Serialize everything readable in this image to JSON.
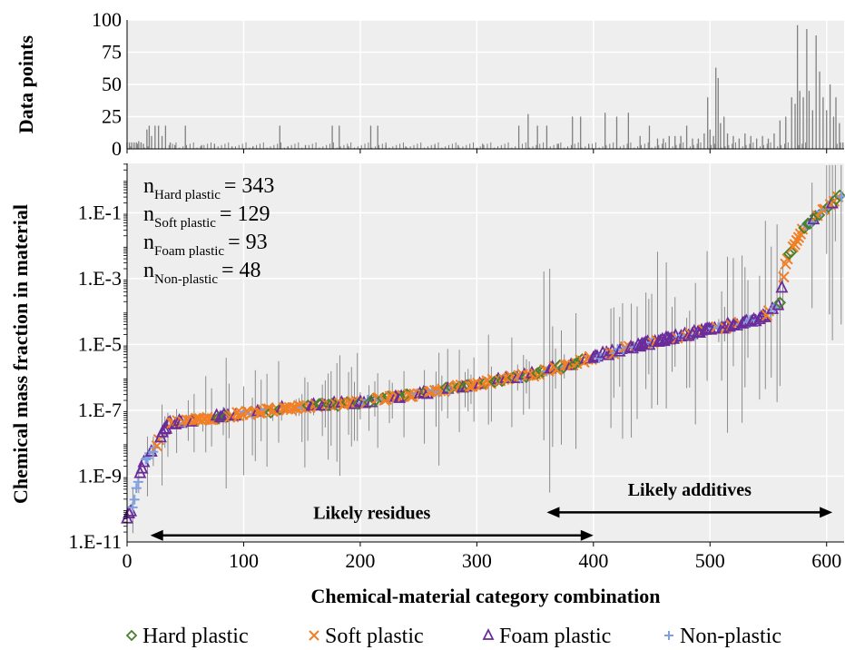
{
  "chart_data": [
    {
      "type": "bar",
      "panel": "top",
      "ylabel": "Data points",
      "ylim": [
        0,
        100
      ],
      "yticks": [
        "0",
        "25",
        "50",
        "75",
        "100"
      ],
      "bars": [
        {
          "x": 0,
          "y": 5
        },
        {
          "x": 2,
          "y": 5
        },
        {
          "x": 4,
          "y": 5
        },
        {
          "x": 6,
          "y": 5
        },
        {
          "x": 8,
          "y": 5
        },
        {
          "x": 10,
          "y": 6
        },
        {
          "x": 12,
          "y": 5
        },
        {
          "x": 14,
          "y": 4
        },
        {
          "x": 17,
          "y": 15
        },
        {
          "x": 19,
          "y": 18
        },
        {
          "x": 21,
          "y": 10
        },
        {
          "x": 24,
          "y": 18
        },
        {
          "x": 27,
          "y": 18
        },
        {
          "x": 30,
          "y": 10
        },
        {
          "x": 33,
          "y": 18
        },
        {
          "x": 37,
          "y": 5
        },
        {
          "x": 41,
          "y": 3
        },
        {
          "x": 50,
          "y": 18
        },
        {
          "x": 64,
          "y": 3
        },
        {
          "x": 75,
          "y": 4
        },
        {
          "x": 90,
          "y": 2
        },
        {
          "x": 108,
          "y": 2
        },
        {
          "x": 131,
          "y": 18
        },
        {
          "x": 138,
          "y": 2
        },
        {
          "x": 153,
          "y": 3
        },
        {
          "x": 176,
          "y": 18
        },
        {
          "x": 182,
          "y": 18
        },
        {
          "x": 190,
          "y": 2
        },
        {
          "x": 209,
          "y": 18
        },
        {
          "x": 215,
          "y": 18
        },
        {
          "x": 222,
          "y": 3
        },
        {
          "x": 239,
          "y": 2
        },
        {
          "x": 264,
          "y": 3
        },
        {
          "x": 284,
          "y": 3
        },
        {
          "x": 305,
          "y": 4
        },
        {
          "x": 336,
          "y": 18
        },
        {
          "x": 344,
          "y": 27
        },
        {
          "x": 352,
          "y": 18
        },
        {
          "x": 360,
          "y": 18
        },
        {
          "x": 370,
          "y": 4
        },
        {
          "x": 382,
          "y": 25
        },
        {
          "x": 389,
          "y": 25
        },
        {
          "x": 396,
          "y": 4
        },
        {
          "x": 410,
          "y": 28
        },
        {
          "x": 420,
          "y": 25
        },
        {
          "x": 430,
          "y": 28
        },
        {
          "x": 440,
          "y": 10
        },
        {
          "x": 448,
          "y": 18
        },
        {
          "x": 455,
          "y": 8
        },
        {
          "x": 460,
          "y": 8
        },
        {
          "x": 465,
          "y": 10
        },
        {
          "x": 470,
          "y": 10
        },
        {
          "x": 475,
          "y": 10
        },
        {
          "x": 480,
          "y": 18
        },
        {
          "x": 485,
          "y": 8
        },
        {
          "x": 490,
          "y": 8
        },
        {
          "x": 495,
          "y": 12
        },
        {
          "x": 498,
          "y": 40
        },
        {
          "x": 500,
          "y": 15
        },
        {
          "x": 503,
          "y": 10
        },
        {
          "x": 505,
          "y": 63
        },
        {
          "x": 507,
          "y": 55
        },
        {
          "x": 509,
          "y": 20
        },
        {
          "x": 512,
          "y": 25
        },
        {
          "x": 515,
          "y": 12
        },
        {
          "x": 520,
          "y": 10
        },
        {
          "x": 525,
          "y": 8
        },
        {
          "x": 530,
          "y": 12
        },
        {
          "x": 535,
          "y": 10
        },
        {
          "x": 540,
          "y": 8
        },
        {
          "x": 545,
          "y": 10
        },
        {
          "x": 550,
          "y": 8
        },
        {
          "x": 555,
          "y": 12
        },
        {
          "x": 560,
          "y": 22
        },
        {
          "x": 565,
          "y": 25
        },
        {
          "x": 570,
          "y": 40
        },
        {
          "x": 573,
          "y": 35
        },
        {
          "x": 575,
          "y": 96
        },
        {
          "x": 577,
          "y": 45
        },
        {
          "x": 580,
          "y": 40
        },
        {
          "x": 583,
          "y": 93
        },
        {
          "x": 585,
          "y": 45
        },
        {
          "x": 588,
          "y": 30
        },
        {
          "x": 591,
          "y": 88
        },
        {
          "x": 594,
          "y": 60
        },
        {
          "x": 597,
          "y": 40
        },
        {
          "x": 600,
          "y": 30
        },
        {
          "x": 603,
          "y": 50
        },
        {
          "x": 606,
          "y": 25
        },
        {
          "x": 608,
          "y": 40
        },
        {
          "x": 611,
          "y": 20
        },
        {
          "x": 614,
          "y": 5
        }
      ]
    },
    {
      "type": "scatter",
      "panel": "bottom",
      "xlabel": "Chemical-material category combination",
      "ylabel": "Chemical mass fraction in material",
      "xlim": [
        0,
        615
      ],
      "xticks": [
        "0",
        "100",
        "200",
        "300",
        "400",
        "500",
        "600"
      ],
      "ylim_log10": [
        -11,
        0.5
      ],
      "yscale": "log",
      "yticks": [
        "1.E-11",
        "1.E-9",
        "1.E-7",
        "1.E-5",
        "1.E-3",
        "1.E-1"
      ],
      "grid": true,
      "counts": {
        "hard": {
          "label": "Hard plastic",
          "n": "= 343"
        },
        "soft": {
          "label": "Soft plastic",
          "n": "= 129"
        },
        "foam": {
          "label": "Foam plastic",
          "n": "= 93"
        },
        "non": {
          "label": "Non-plastic",
          "n": "= 48"
        }
      },
      "n_prefix": "n",
      "curve_points": [
        {
          "x": 0,
          "y": -10.3
        },
        {
          "x": 5,
          "y": -9.9
        },
        {
          "x": 10,
          "y": -9.1
        },
        {
          "x": 15,
          "y": -8.5
        },
        {
          "x": 20,
          "y": -8.3
        },
        {
          "x": 25,
          "y": -8.1
        },
        {
          "x": 30,
          "y": -7.7
        },
        {
          "x": 35,
          "y": -7.45
        },
        {
          "x": 40,
          "y": -7.38
        },
        {
          "x": 60,
          "y": -7.3
        },
        {
          "x": 100,
          "y": -7.1
        },
        {
          "x": 150,
          "y": -6.9
        },
        {
          "x": 200,
          "y": -6.75
        },
        {
          "x": 250,
          "y": -6.5
        },
        {
          "x": 300,
          "y": -6.2
        },
        {
          "x": 350,
          "y": -5.9
        },
        {
          "x": 390,
          "y": -5.5
        },
        {
          "x": 430,
          "y": -5.1
        },
        {
          "x": 480,
          "y": -4.7
        },
        {
          "x": 520,
          "y": -4.4
        },
        {
          "x": 545,
          "y": -4.2
        },
        {
          "x": 560,
          "y": -3.7
        },
        {
          "x": 565,
          "y": -2.5
        },
        {
          "x": 570,
          "y": -2.1
        },
        {
          "x": 580,
          "y": -1.5
        },
        {
          "x": 595,
          "y": -1.0
        },
        {
          "x": 605,
          "y": -0.7
        },
        {
          "x": 615,
          "y": -0.4
        }
      ],
      "annotations": [
        {
          "text": "Likely residues",
          "x_start": 20,
          "x_end": 400,
          "y": -10.8,
          "label_y": -10.1
        },
        {
          "text": "Likely additives",
          "x_start": 360,
          "x_end": 605,
          "y": -10.1,
          "label_y": -9.4
        }
      ],
      "series": [
        {
          "name": "Hard plastic",
          "marker": "diamond",
          "color": "#4a7f2c"
        },
        {
          "name": "Soft plastic",
          "marker": "x",
          "color": "#f07f26"
        },
        {
          "name": "Foam plastic",
          "marker": "triangle",
          "color": "#6a2c9a"
        },
        {
          "name": "Non-plastic",
          "marker": "plus",
          "color": "#7f9fe0"
        }
      ],
      "colors": {
        "panel_bg": "#eeeeee",
        "grid": "#ffffff",
        "error_bar": "#8c8c8c",
        "bar": "#7f7f7f"
      }
    }
  ]
}
